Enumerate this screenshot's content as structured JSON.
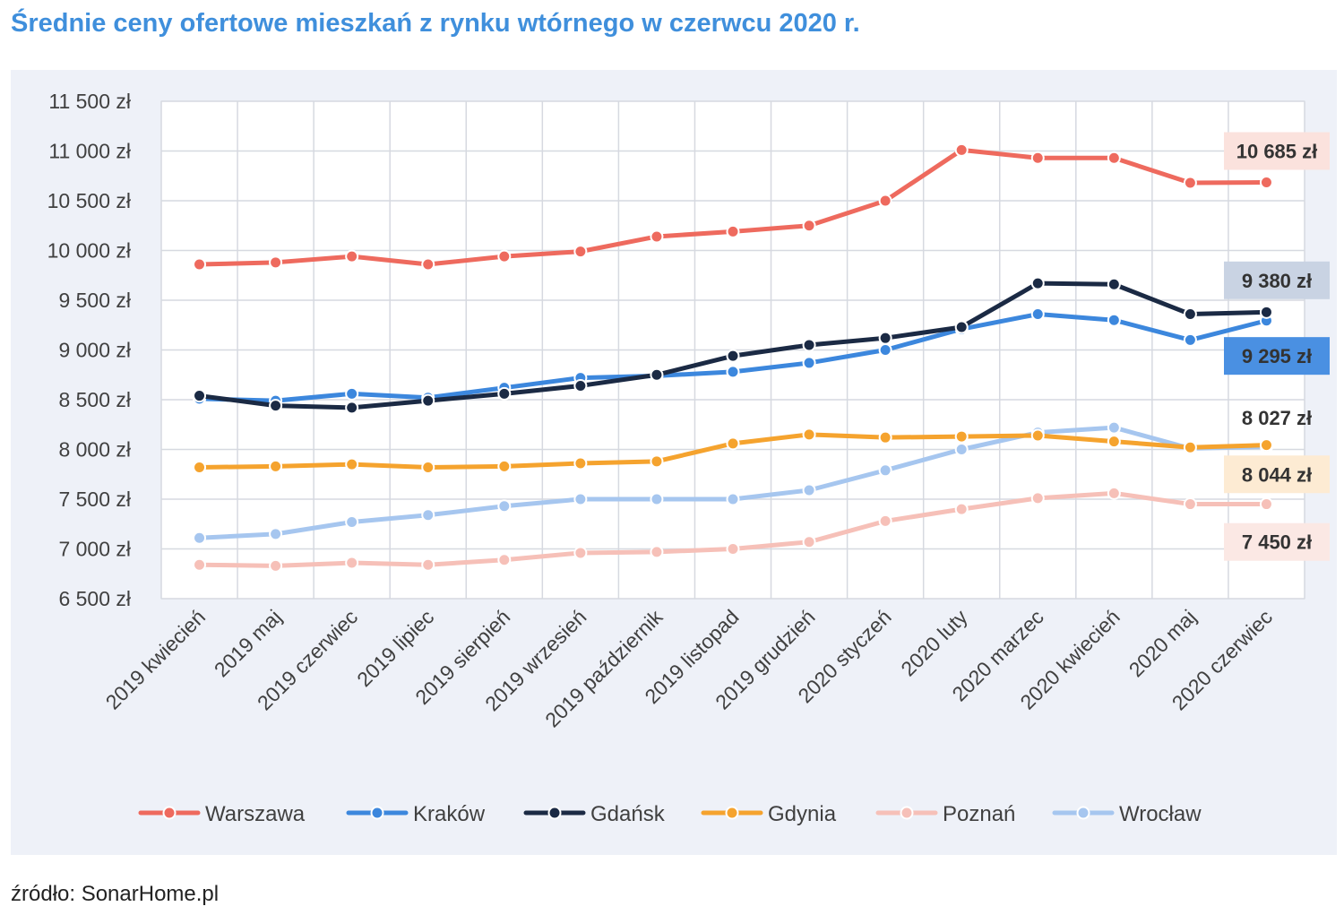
{
  "title": "Średnie ceny ofertowe mieszkań z rynku wtórnego w czerwcu 2020 r.",
  "source": "źródło: SonarHome.pl",
  "chart_data": {
    "type": "line",
    "title": "Średnie ceny ofertowe mieszkań z rynku wtórnego w czerwcu 2020 r.",
    "xlabel": "",
    "ylabel": "",
    "ylim": [
      6500,
      11500
    ],
    "ytick_step": 500,
    "ytick_labels": [
      "6 500 zł",
      "7 000 zł",
      "7 500 zł",
      "8 000 zł",
      "8 500 zł",
      "9 000 zł",
      "9 500 zł",
      "10 000 zł",
      "10 500 zł",
      "11 000 zł",
      "11 500 zł"
    ],
    "grid": true,
    "legend_position": "bottom",
    "categories": [
      "2019 kwiecień",
      "2019 maj",
      "2019 czerwiec",
      "2019 lipiec",
      "2019 sierpień",
      "2019 wrzesień",
      "2019 październik",
      "2019 listopad",
      "2019 grudzień",
      "2020 styczeń",
      "2020 luty",
      "2020 marzec",
      "2020 kwiecień",
      "2020 maj",
      "2020 czerwiec"
    ],
    "series": [
      {
        "name": "Warszawa",
        "color": "#ee6a5e",
        "values": [
          9860,
          9880,
          9940,
          9860,
          9940,
          9990,
          10140,
          10190,
          10250,
          10500,
          11010,
          10930,
          10930,
          10680,
          10685
        ]
      },
      {
        "name": "Kraków",
        "color": "#3c87dd",
        "values": [
          8510,
          8490,
          8560,
          8520,
          8620,
          8720,
          8740,
          8780,
          8870,
          9000,
          9210,
          9360,
          9300,
          9100,
          9295
        ]
      },
      {
        "name": "Gdańsk",
        "color": "#1b2a44",
        "values": [
          8540,
          8440,
          8420,
          8490,
          8560,
          8640,
          8750,
          8940,
          9050,
          9120,
          9230,
          9670,
          9660,
          9360,
          9380
        ]
      },
      {
        "name": "Gdynia",
        "color": "#f5a32e",
        "values": [
          7820,
          7830,
          7850,
          7820,
          7830,
          7860,
          7880,
          8060,
          8150,
          8120,
          8130,
          8140,
          8080,
          8020,
          8044
        ]
      },
      {
        "name": "Poznań",
        "color": "#f6c0b8",
        "values": [
          6840,
          6830,
          6860,
          6840,
          6890,
          6960,
          6970,
          7000,
          7070,
          7280,
          7400,
          7510,
          7560,
          7450,
          7450
        ]
      },
      {
        "name": "Wrocław",
        "color": "#a6c6ef",
        "values": [
          7110,
          7150,
          7270,
          7340,
          7430,
          7500,
          7500,
          7500,
          7590,
          7790,
          8000,
          8170,
          8220,
          8010,
          8027
        ]
      }
    ],
    "callouts": [
      {
        "series": "Warszawa",
        "label": "10 685 zł",
        "bg": "#fbe2dd",
        "anchor_value": 11000
      },
      {
        "series": "Gdańsk",
        "label": "9 380 zł",
        "bg": "#c9d3e3",
        "anchor_value": 9700
      },
      {
        "series": "Kraków",
        "label": "9 295 zł",
        "bg": "#4a90e2",
        "anchor_value": 8940
      },
      {
        "series": "Wrocław",
        "label": "8 027 zł",
        "bg": "none",
        "anchor_value": 8320
      },
      {
        "series": "Gdynia",
        "label": "8 044 zł",
        "bg": "#fdebd3",
        "anchor_value": 7750
      },
      {
        "series": "Poznań",
        "label": "7 450 zł",
        "bg": "#fbe8e4",
        "anchor_value": 7070
      }
    ]
  }
}
